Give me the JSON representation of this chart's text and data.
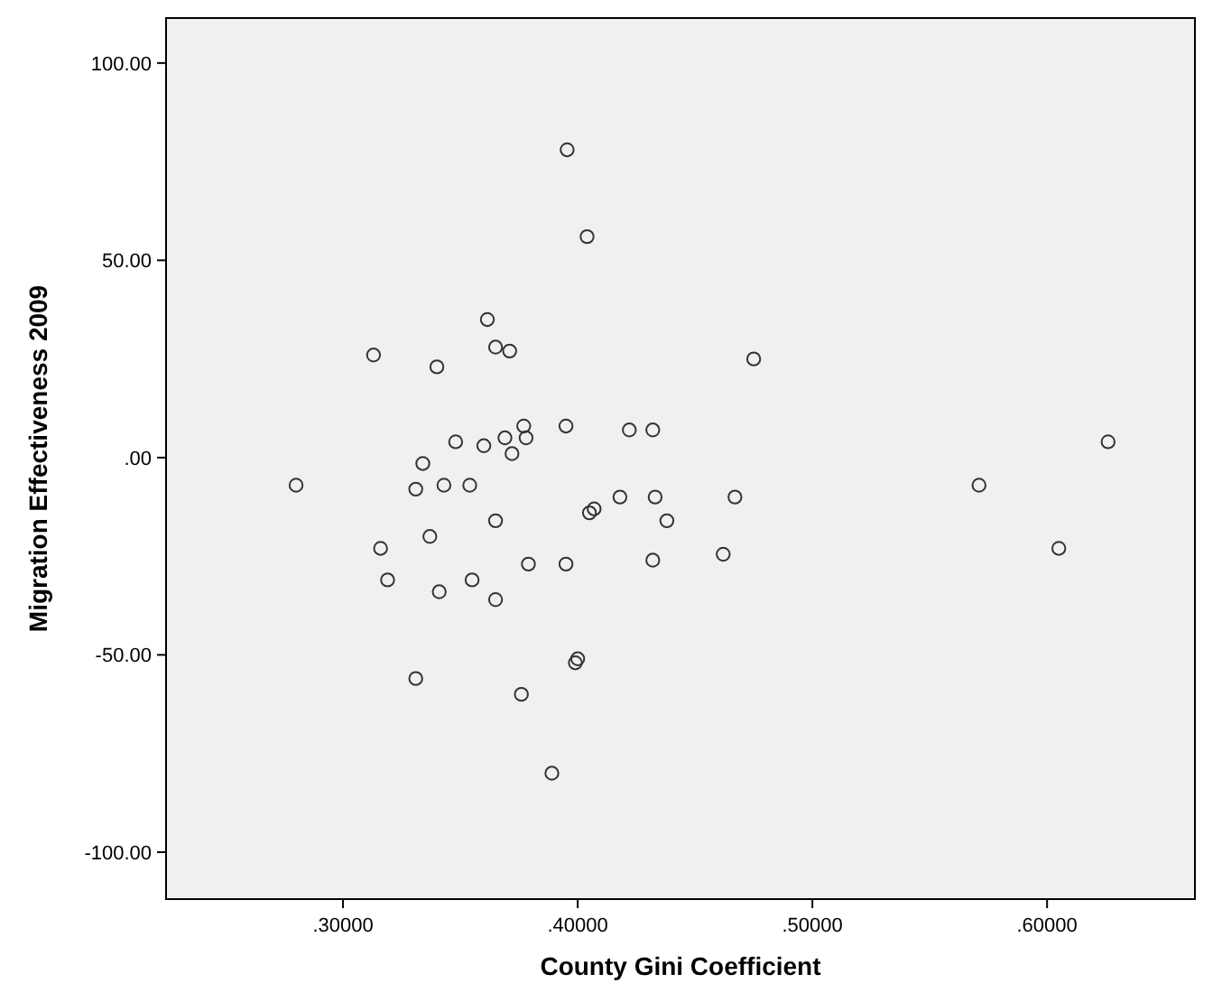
{
  "chart_data": {
    "type": "scatter",
    "xlabel": "County Gini Coefficient",
    "ylabel": "Migration Effectiveness 2009",
    "xlim": [
      0.2246,
      0.663
    ],
    "ylim": [
      -111.9,
      111.4
    ],
    "xticks": [
      {
        "value": 0.3,
        "label": ".30000"
      },
      {
        "value": 0.4,
        "label": ".40000"
      },
      {
        "value": 0.5,
        "label": ".50000"
      },
      {
        "value": 0.6,
        "label": ".60000"
      }
    ],
    "yticks": [
      {
        "value": -100,
        "label": "-100.00"
      },
      {
        "value": -50,
        "label": "-50.00"
      },
      {
        "value": 0,
        "label": ".00"
      },
      {
        "value": 50,
        "label": "50.00"
      },
      {
        "value": 100,
        "label": "100.00"
      }
    ],
    "grid": false,
    "marker": "circle",
    "series": [
      {
        "color": "#333333",
        "x": [
          0.3955,
          0.404,
          0.3615,
          0.313,
          0.365,
          0.371,
          0.34,
          0.475,
          0.28,
          0.334,
          0.331,
          0.343,
          0.348,
          0.354,
          0.36,
          0.369,
          0.372,
          0.377,
          0.378,
          0.395,
          0.422,
          0.432,
          0.418,
          0.433,
          0.438,
          0.405,
          0.407,
          0.467,
          0.365,
          0.316,
          0.337,
          0.319,
          0.355,
          0.379,
          0.395,
          0.432,
          0.462,
          0.341,
          0.365,
          0.4,
          0.399,
          0.331,
          0.376,
          0.389,
          0.571,
          0.605,
          0.626
        ],
        "values": [
          78,
          56,
          35,
          26,
          28,
          27,
          23,
          25,
          -7,
          -1.5,
          -8,
          -7,
          4,
          -7,
          3,
          5,
          1,
          8,
          5,
          8,
          7,
          7,
          -10,
          -10,
          -16,
          -14,
          -13,
          -10,
          -16,
          -23,
          -20,
          -31,
          -31,
          -27,
          -27,
          -26,
          -24.5,
          -34,
          -36,
          -51,
          -52,
          -56,
          -60,
          -80,
          -7,
          -23,
          4
        ]
      }
    ]
  }
}
